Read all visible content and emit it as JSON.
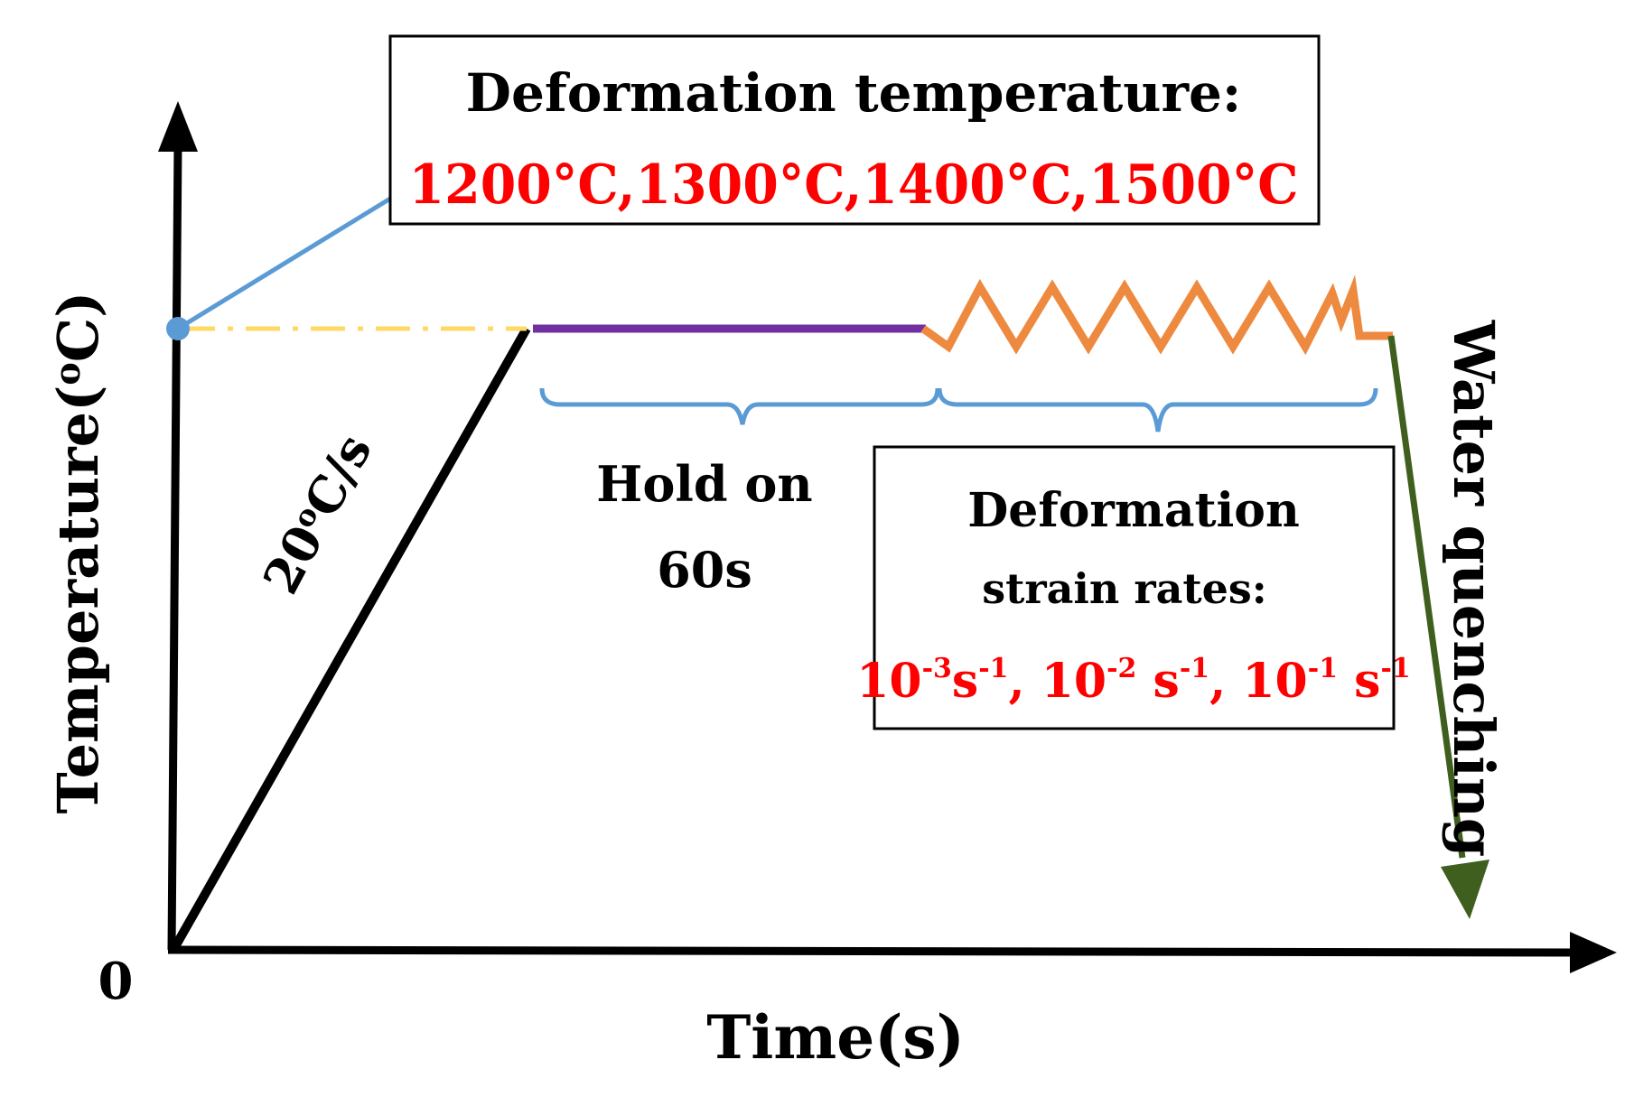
{
  "axes": {
    "y_label": "Temperature(",
    "y_unit_sup": "o",
    "y_unit": "C)",
    "x_label": "Time(s)",
    "origin": "0"
  },
  "heating": {
    "rate_value": "20",
    "rate_sup": "o",
    "rate_unit": "C/s"
  },
  "deformation_temperature": {
    "label": "Deformation temperature:",
    "values": "1200°C,1300°C,1400°C,1500°C"
  },
  "hold": {
    "line1": "Hold on",
    "line2": "60s"
  },
  "strain_rates": {
    "line1": "Deformation",
    "line2": "strain rates:",
    "r1_base": "10",
    "r1_exp": "-3",
    "r1_unit": "s",
    "r1_unit_exp": "-1",
    "sep1": ", ",
    "r2_base": "10",
    "r2_exp": "-2",
    "r2_unit": " s",
    "r2_unit_exp": "-1",
    "sep2": ", ",
    "r3_base": "10",
    "r3_exp": "-1",
    "r3_unit": " s",
    "r3_unit_exp": "-1"
  },
  "quench": {
    "label": "Water quenching"
  },
  "colors": {
    "axis": "#000000",
    "heating_line": "#000000",
    "hold_line": "#7030A0",
    "deformation_line": "#ED8A3F",
    "quench_line": "#3F5F1E",
    "dashed_line": "#FFD966",
    "leader_line": "#5B9BD5",
    "brace": "#5B9BD5",
    "highlight_text": "#FF0000"
  }
}
